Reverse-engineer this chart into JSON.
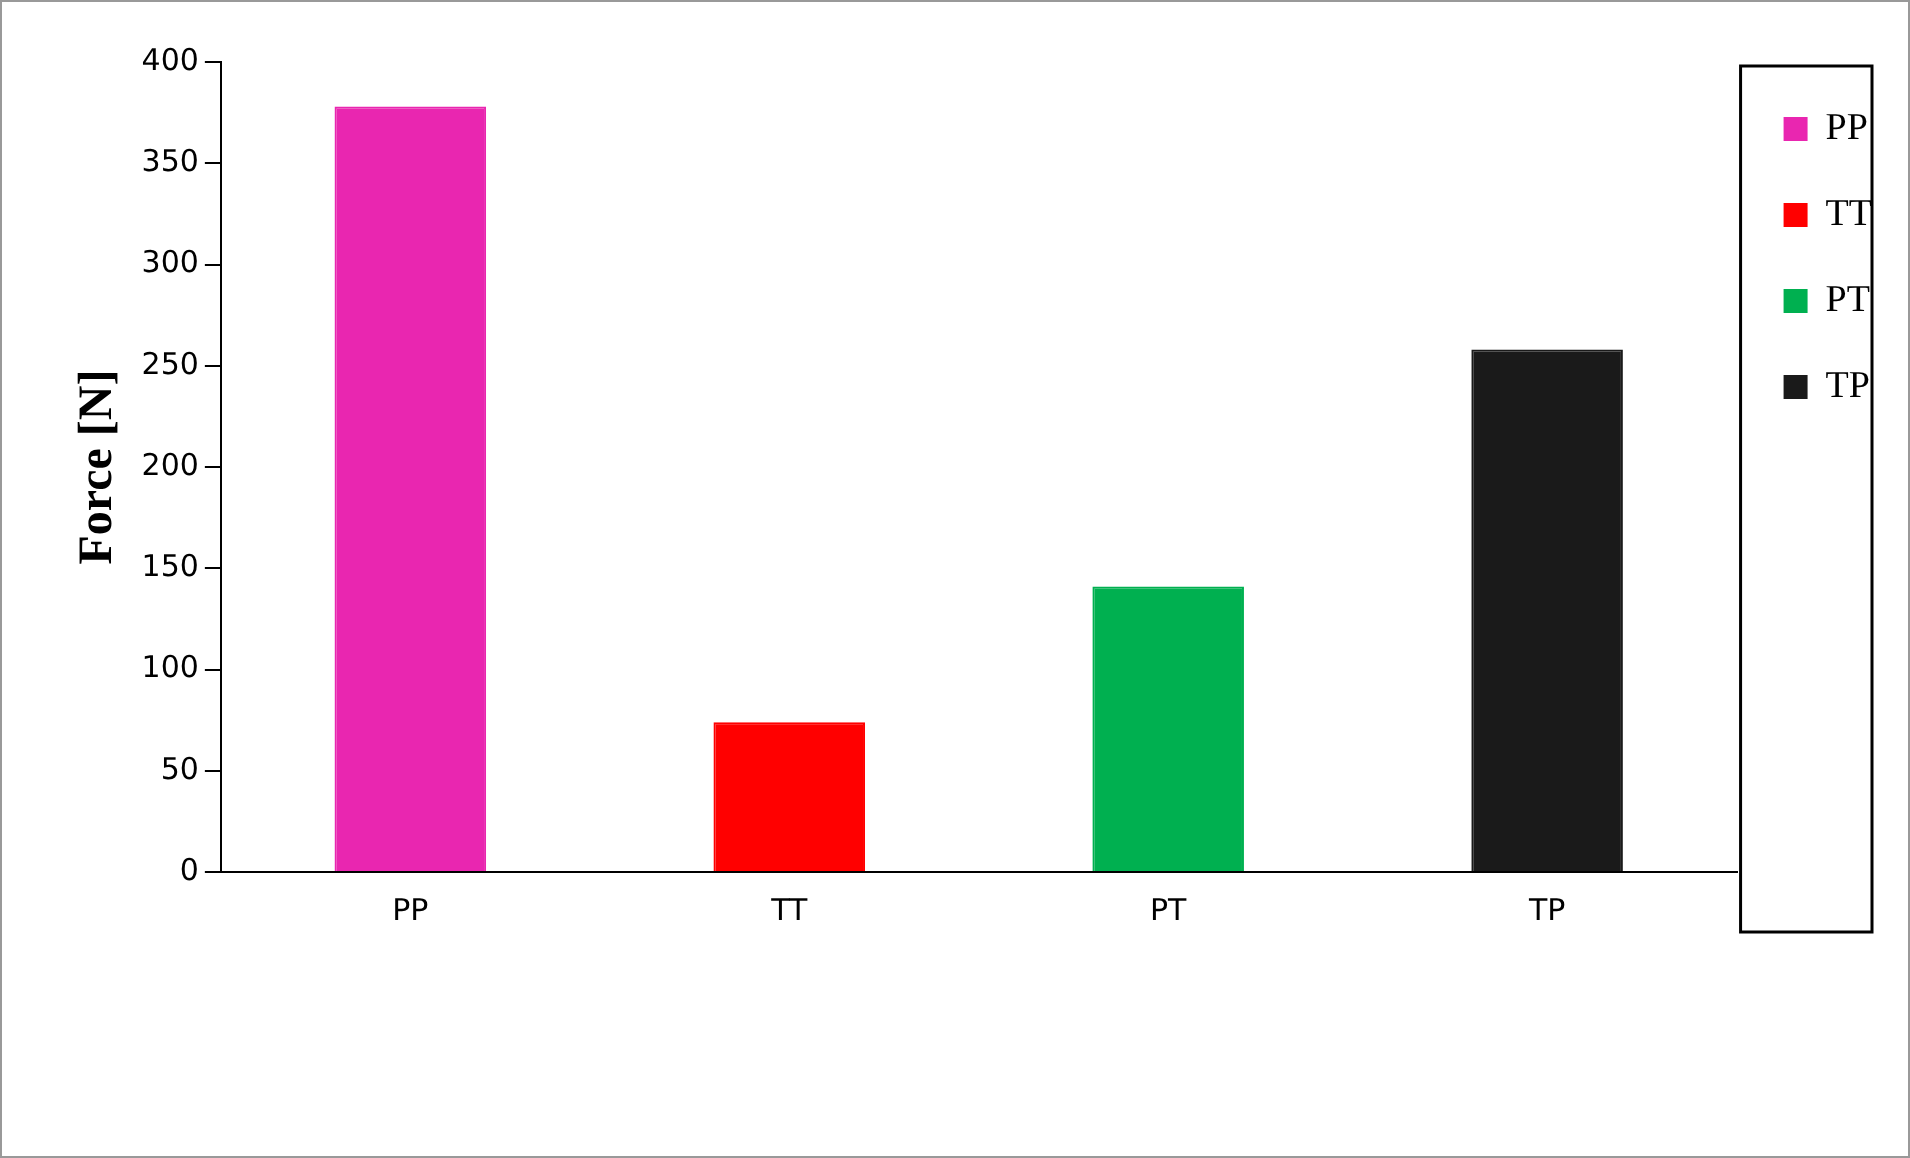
{
  "chart_data": {
    "type": "bar",
    "ylabel": "Force [N]",
    "categories": [
      "PP",
      "TT",
      "PT",
      "TP"
    ],
    "series": [
      {
        "name": "PP",
        "color": "#e926b0",
        "values": [
          378,
          null,
          null,
          null
        ]
      },
      {
        "name": "TT",
        "color": "#ff0000",
        "values": [
          null,
          74,
          null,
          null
        ]
      },
      {
        "name": "PT",
        "color": "#00b050",
        "values": [
          null,
          null,
          141,
          null
        ]
      },
      {
        "name": "TP",
        "color": "#1a1a1a",
        "values": [
          null,
          null,
          null,
          258
        ]
      }
    ],
    "ylim": [
      0,
      400
    ],
    "yticks": [
      0,
      50,
      100,
      150,
      200,
      250,
      300,
      350,
      400
    ],
    "grid": false,
    "legend": "top right"
  }
}
